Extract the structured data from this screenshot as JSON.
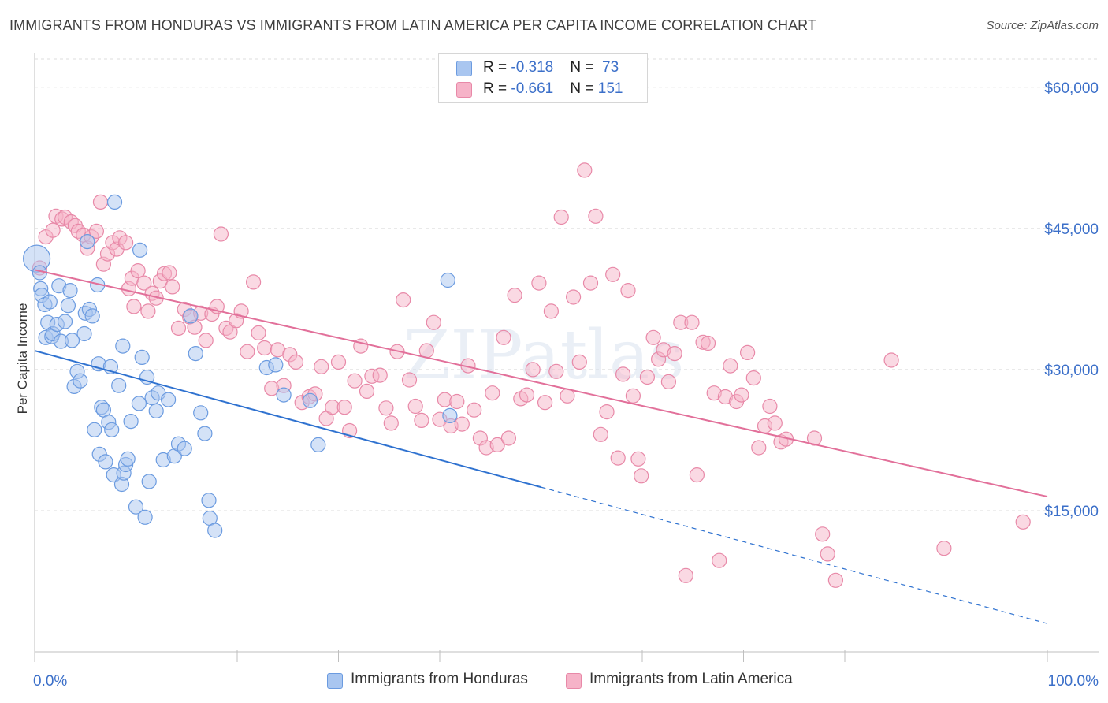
{
  "title": "IMMIGRANTS FROM HONDURAS VS IMMIGRANTS FROM LATIN AMERICA PER CAPITA INCOME CORRELATION CHART",
  "source": "Source: ZipAtlas.com",
  "watermark": "ZIPatlas",
  "legend": {
    "rows": [
      {
        "r_label": "R = ",
        "r_value": "-0.318",
        "n_label": "N = ",
        "n_value": "73",
        "color": "#a9c6f0"
      },
      {
        "r_label": "R = ",
        "r_value": "-0.661",
        "n_label": "N = ",
        "n_value": "151",
        "color": "#f6b3c8"
      }
    ]
  },
  "colors": {
    "blue_fill": "#a9c6f0",
    "blue_stroke": "#6b9be0",
    "blue_line": "#2f72d0",
    "pink_fill": "#f6b3c8",
    "pink_stroke": "#e889a8",
    "pink_line": "#e2709a",
    "tick_label": "#3b6fc9",
    "grid": "#dcdcdc"
  },
  "chart_data": {
    "type": "scatter",
    "ylabel": "Per Capita Income",
    "xlabel": "",
    "x_tick_labels": [
      "0.0%",
      "100.0%"
    ],
    "y_ticks": [
      {
        "value": 15000,
        "label": "$15,000"
      },
      {
        "value": 30000,
        "label": "$30,000"
      },
      {
        "value": 45000,
        "label": "$45,000"
      },
      {
        "value": 60000,
        "label": "$60,000"
      }
    ],
    "xlim": [
      0,
      100
    ],
    "ylim": [
      0,
      63000
    ],
    "grid": true,
    "series": [
      {
        "name": "Immigrants from Honduras",
        "r": -0.318,
        "n": 73,
        "trend": {
          "x0": 0,
          "y0": 32000,
          "x_solid_end": 50,
          "x1": 100,
          "y1": 3000
        },
        "points": [
          [
            0.2,
            41800
          ],
          [
            0.5,
            40300
          ],
          [
            0.6,
            38600
          ],
          [
            0.7,
            37900
          ],
          [
            1.0,
            36900
          ],
          [
            1.1,
            33400
          ],
          [
            1.3,
            35000
          ],
          [
            1.5,
            37200
          ],
          [
            1.7,
            33500
          ],
          [
            1.8,
            33800
          ],
          [
            2.2,
            34800
          ],
          [
            2.4,
            38900
          ],
          [
            2.6,
            33000
          ],
          [
            3.0,
            35100
          ],
          [
            3.3,
            36800
          ],
          [
            3.5,
            38400
          ],
          [
            3.7,
            33100
          ],
          [
            3.9,
            28200
          ],
          [
            4.2,
            29800
          ],
          [
            4.5,
            28800
          ],
          [
            4.9,
            33800
          ],
          [
            5.0,
            36000
          ],
          [
            5.2,
            43600
          ],
          [
            5.4,
            36400
          ],
          [
            5.7,
            35700
          ],
          [
            5.9,
            23600
          ],
          [
            6.2,
            39000
          ],
          [
            6.3,
            30600
          ],
          [
            6.4,
            21000
          ],
          [
            6.6,
            26000
          ],
          [
            6.8,
            25700
          ],
          [
            7.0,
            20200
          ],
          [
            7.3,
            24400
          ],
          [
            7.5,
            30300
          ],
          [
            7.6,
            23600
          ],
          [
            7.8,
            18800
          ],
          [
            7.9,
            47800
          ],
          [
            8.3,
            28300
          ],
          [
            8.6,
            17800
          ],
          [
            8.7,
            32500
          ],
          [
            8.8,
            19000
          ],
          [
            9.0,
            19900
          ],
          [
            9.2,
            20500
          ],
          [
            9.5,
            24500
          ],
          [
            10.0,
            15400
          ],
          [
            10.3,
            26400
          ],
          [
            10.4,
            42700
          ],
          [
            10.6,
            31300
          ],
          [
            10.9,
            14300
          ],
          [
            11.1,
            29200
          ],
          [
            11.3,
            18100
          ],
          [
            11.6,
            27000
          ],
          [
            12.0,
            25600
          ],
          [
            12.2,
            27500
          ],
          [
            12.7,
            20400
          ],
          [
            13.2,
            26800
          ],
          [
            13.8,
            20800
          ],
          [
            14.2,
            22100
          ],
          [
            14.8,
            21600
          ],
          [
            15.4,
            35700
          ],
          [
            15.9,
            31700
          ],
          [
            16.4,
            25400
          ],
          [
            16.8,
            23200
          ],
          [
            17.2,
            16100
          ],
          [
            17.3,
            14200
          ],
          [
            17.8,
            12900
          ],
          [
            22.9,
            30200
          ],
          [
            23.8,
            30500
          ],
          [
            24.6,
            27300
          ],
          [
            27.2,
            26700
          ],
          [
            28.0,
            22000
          ],
          [
            40.8,
            39500
          ],
          [
            41.0,
            25100
          ]
        ]
      },
      {
        "name": "Immigrants from Latin America",
        "r": -0.661,
        "n": 151,
        "trend": {
          "x0": 0,
          "y0": 40600,
          "x_solid_end": 100,
          "x1": 100,
          "y1": 16500
        },
        "points": [
          [
            0.5,
            40800
          ],
          [
            1.1,
            44100
          ],
          [
            1.8,
            44800
          ],
          [
            2.1,
            46300
          ],
          [
            2.7,
            46000
          ],
          [
            3.0,
            46200
          ],
          [
            3.6,
            45700
          ],
          [
            4.0,
            45300
          ],
          [
            4.3,
            44700
          ],
          [
            4.8,
            44300
          ],
          [
            5.2,
            42900
          ],
          [
            5.6,
            44100
          ],
          [
            6.1,
            44700
          ],
          [
            6.5,
            47800
          ],
          [
            6.8,
            41200
          ],
          [
            7.2,
            42300
          ],
          [
            7.7,
            43500
          ],
          [
            8.1,
            42800
          ],
          [
            8.4,
            44000
          ],
          [
            9.0,
            43500
          ],
          [
            9.3,
            38600
          ],
          [
            9.6,
            39700
          ],
          [
            9.8,
            36700
          ],
          [
            10.2,
            40500
          ],
          [
            10.8,
            39200
          ],
          [
            11.2,
            36200
          ],
          [
            11.6,
            38100
          ],
          [
            12.0,
            37600
          ],
          [
            12.4,
            39400
          ],
          [
            12.8,
            40200
          ],
          [
            13.3,
            40300
          ],
          [
            13.6,
            38800
          ],
          [
            14.2,
            34400
          ],
          [
            14.8,
            36400
          ],
          [
            15.3,
            35600
          ],
          [
            15.8,
            34500
          ],
          [
            16.4,
            36000
          ],
          [
            16.9,
            33100
          ],
          [
            17.5,
            35900
          ],
          [
            18.0,
            36700
          ],
          [
            18.4,
            44400
          ],
          [
            18.9,
            34400
          ],
          [
            19.3,
            34000
          ],
          [
            19.9,
            35200
          ],
          [
            20.4,
            36200
          ],
          [
            21.0,
            31900
          ],
          [
            21.6,
            39300
          ],
          [
            22.1,
            33900
          ],
          [
            22.7,
            32300
          ],
          [
            23.4,
            28000
          ],
          [
            24.0,
            32100
          ],
          [
            24.6,
            28300
          ],
          [
            25.2,
            31600
          ],
          [
            25.8,
            30800
          ],
          [
            26.4,
            26500
          ],
          [
            27.1,
            27100
          ],
          [
            27.7,
            27400
          ],
          [
            28.3,
            30300
          ],
          [
            28.8,
            24800
          ],
          [
            29.4,
            26000
          ],
          [
            30.0,
            30800
          ],
          [
            30.6,
            26000
          ],
          [
            31.1,
            23500
          ],
          [
            31.6,
            28800
          ],
          [
            32.2,
            32500
          ],
          [
            32.8,
            27700
          ],
          [
            33.3,
            29300
          ],
          [
            34.1,
            29400
          ],
          [
            34.7,
            25900
          ],
          [
            35.2,
            24300
          ],
          [
            35.8,
            31900
          ],
          [
            36.4,
            37400
          ],
          [
            37.0,
            28900
          ],
          [
            37.6,
            26100
          ],
          [
            38.2,
            24600
          ],
          [
            38.7,
            32000
          ],
          [
            39.4,
            35000
          ],
          [
            40.0,
            24700
          ],
          [
            40.5,
            26800
          ],
          [
            41.1,
            24000
          ],
          [
            41.7,
            26600
          ],
          [
            42.2,
            24200
          ],
          [
            42.8,
            30400
          ],
          [
            43.4,
            25700
          ],
          [
            44.0,
            22700
          ],
          [
            44.6,
            21700
          ],
          [
            45.2,
            27500
          ],
          [
            45.7,
            22000
          ],
          [
            46.3,
            33400
          ],
          [
            46.8,
            22700
          ],
          [
            47.4,
            37900
          ],
          [
            48.0,
            26900
          ],
          [
            48.6,
            27300
          ],
          [
            49.2,
            30000
          ],
          [
            49.8,
            39200
          ],
          [
            50.4,
            26500
          ],
          [
            51.0,
            36200
          ],
          [
            51.5,
            29800
          ],
          [
            52.0,
            46200
          ],
          [
            52.6,
            27200
          ],
          [
            53.2,
            37700
          ],
          [
            53.8,
            30800
          ],
          [
            54.3,
            51200
          ],
          [
            54.9,
            39200
          ],
          [
            55.4,
            46300
          ],
          [
            55.9,
            23100
          ],
          [
            56.5,
            25500
          ],
          [
            57.1,
            40100
          ],
          [
            57.6,
            20600
          ],
          [
            58.1,
            29500
          ],
          [
            58.6,
            38400
          ],
          [
            59.1,
            27200
          ],
          [
            59.6,
            20500
          ],
          [
            59.9,
            18700
          ],
          [
            60.5,
            29200
          ],
          [
            61.1,
            33400
          ],
          [
            61.6,
            31100
          ],
          [
            62.1,
            32100
          ],
          [
            62.6,
            28700
          ],
          [
            63.2,
            31700
          ],
          [
            63.8,
            35000
          ],
          [
            64.3,
            8100
          ],
          [
            64.9,
            35000
          ],
          [
            65.4,
            18800
          ],
          [
            66.0,
            32900
          ],
          [
            66.5,
            32800
          ],
          [
            67.1,
            27500
          ],
          [
            67.6,
            9700
          ],
          [
            68.2,
            27100
          ],
          [
            68.7,
            30400
          ],
          [
            69.3,
            26600
          ],
          [
            69.8,
            27300
          ],
          [
            70.4,
            31800
          ],
          [
            71.0,
            29100
          ],
          [
            71.5,
            21700
          ],
          [
            72.1,
            24000
          ],
          [
            72.6,
            26100
          ],
          [
            73.1,
            24300
          ],
          [
            73.7,
            22300
          ],
          [
            74.2,
            22600
          ],
          [
            77.0,
            22700
          ],
          [
            77.8,
            12500
          ],
          [
            78.3,
            10400
          ],
          [
            79.1,
            7600
          ],
          [
            84.6,
            31000
          ],
          [
            89.8,
            11000
          ],
          [
            97.6,
            13800
          ]
        ]
      }
    ]
  },
  "bottom_legend": [
    {
      "label": "Immigrants from Honduras",
      "color": "#a9c6f0"
    },
    {
      "label": "Immigrants from Latin America",
      "color": "#f6b3c8"
    }
  ]
}
